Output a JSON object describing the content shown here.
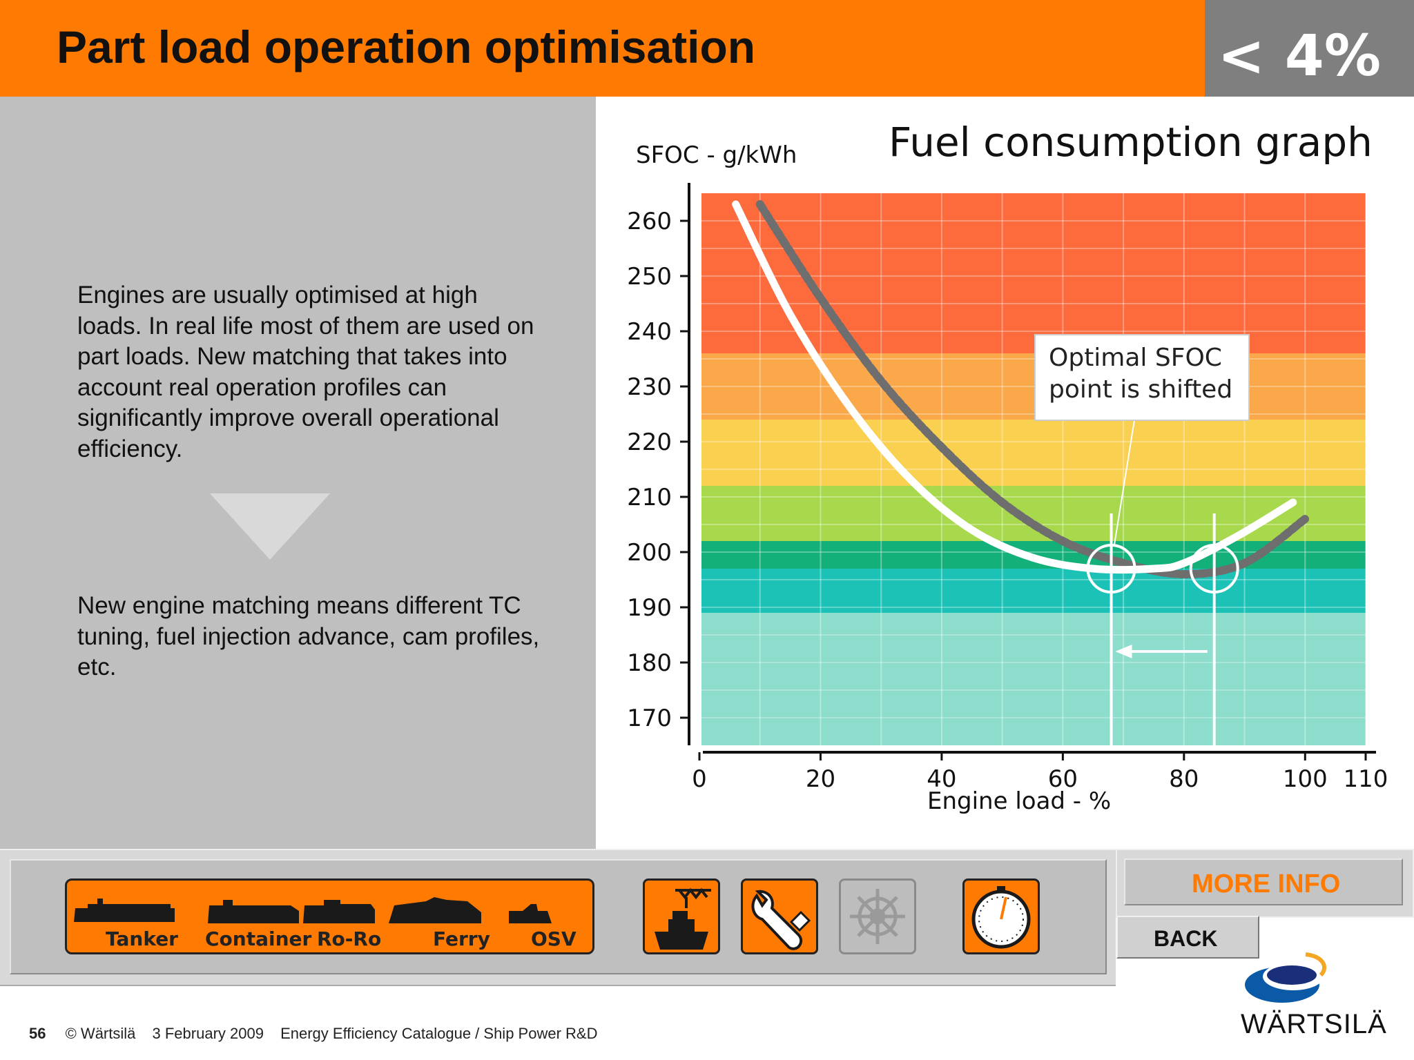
{
  "header": {
    "title": "Part load operation optimisation",
    "badge": "< 4%"
  },
  "description": {
    "paragraph1": "Engines are usually optimised at high loads. In real life most of them are used on part loads. New matching that takes into account real operation profiles can significantly improve overall operational efficiency.",
    "paragraph2": "New engine matching means different TC tuning, fuel injection advance, cam profiles, etc."
  },
  "chart_data": {
    "type": "line",
    "title": "Fuel consumption graph",
    "ylabel": "SFOC - g/kWh",
    "xlabel": "Engine load - %",
    "x_ticks": [
      "0",
      "20",
      "40",
      "60",
      "80",
      "100",
      "110"
    ],
    "y_ticks": [
      "260",
      "250",
      "240",
      "230",
      "220",
      "210",
      "200",
      "190",
      "180",
      "170"
    ],
    "xlim": [
      0,
      110
    ],
    "ylim": [
      165,
      265
    ],
    "series": [
      {
        "style": "dashed-grey",
        "x": [
          10,
          20,
          30,
          40,
          50,
          60,
          70,
          80,
          90,
          100
        ],
        "y": [
          263,
          246,
          231,
          219,
          209,
          202,
          198,
          196,
          198,
          206
        ]
      },
      {
        "style": "solid-white",
        "x": [
          6,
          15,
          25,
          35,
          45,
          55,
          65,
          75,
          80,
          89,
          98
        ],
        "y": [
          263,
          243,
          226,
          213,
          204,
          199,
          197,
          197,
          198,
          203,
          209
        ]
      }
    ],
    "optimal_points": [
      {
        "x": 68,
        "y": 197
      },
      {
        "x": 85,
        "y": 197
      }
    ],
    "annotation": [
      "Optimal SFOC",
      "point is shifted"
    ],
    "bands": [
      {
        "from": 236,
        "to": 265,
        "color": "#fd6a3c"
      },
      {
        "from": 224,
        "to": 236,
        "color": "#fba84a"
      },
      {
        "from": 212,
        "to": 224,
        "color": "#fad050"
      },
      {
        "from": 202,
        "to": 212,
        "color": "#a8d94c"
      },
      {
        "from": 197,
        "to": 202,
        "color": "#14b07a"
      },
      {
        "from": 189,
        "to": 197,
        "color": "#1cc2b6"
      },
      {
        "from": 165,
        "to": 189,
        "color": "#8cddcb"
      }
    ]
  },
  "nav": {
    "ships": [
      "Tanker",
      "Container",
      "Ro-Ro",
      "Ferry",
      "OSV"
    ],
    "icons": [
      "port-crane-ship-icon",
      "wrench-icon",
      "ship-wheel-icon",
      "stopwatch-icon"
    ]
  },
  "buttons": {
    "more_info": "MORE INFO",
    "back": "BACK"
  },
  "footer": {
    "page": "56",
    "copyright": "© Wärtsilä",
    "date": "3 February 2009",
    "source": "Energy Efficiency Catalogue / Ship Power R&D"
  },
  "logo": {
    "text": "WÄRTSILÄ"
  },
  "colors": {
    "accent": "#ff7a00",
    "badge_bg": "#7f7f7f",
    "panel_bg": "#bfbfbf"
  }
}
